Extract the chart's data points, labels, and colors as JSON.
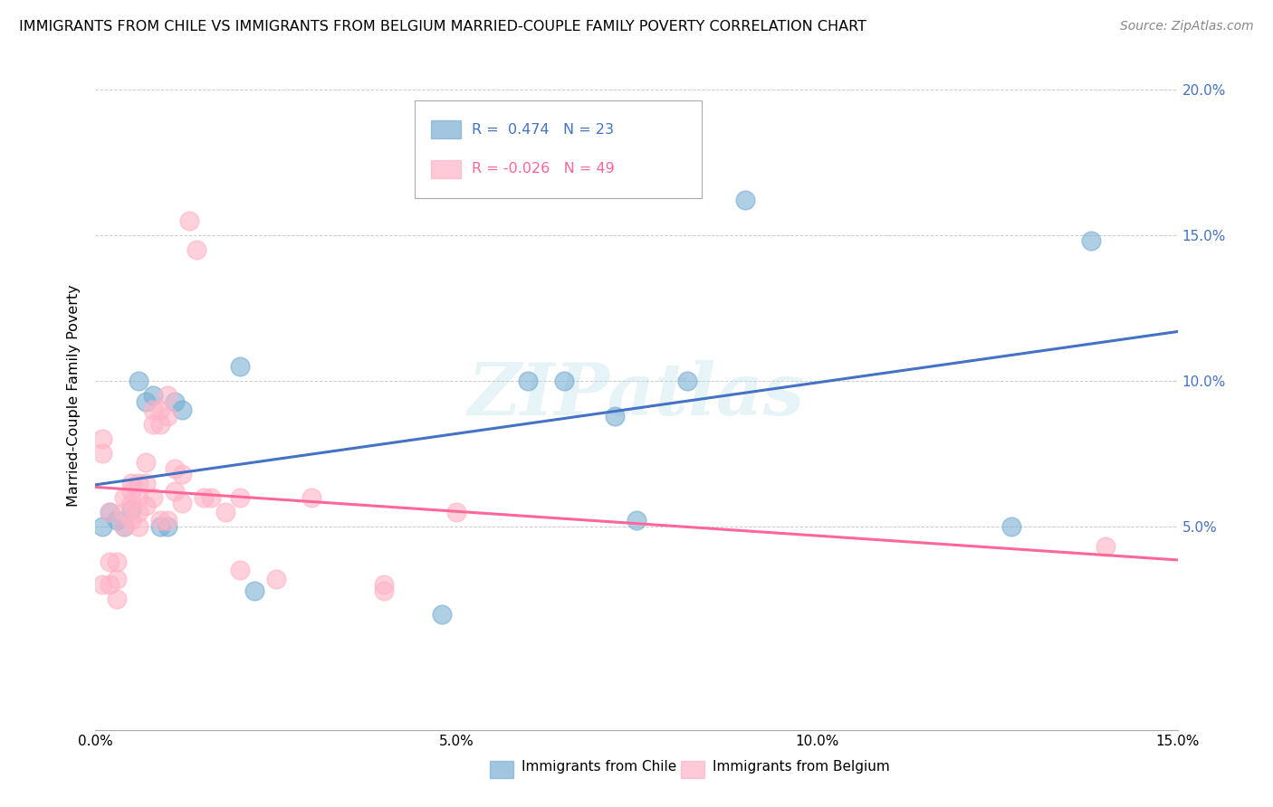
{
  "title": "IMMIGRANTS FROM CHILE VS IMMIGRANTS FROM BELGIUM MARRIED-COUPLE FAMILY POVERTY CORRELATION CHART",
  "source": "Source: ZipAtlas.com",
  "ylabel": "Married-Couple Family Poverty",
  "xlim": [
    0.0,
    0.15
  ],
  "ylim": [
    -0.02,
    0.21
  ],
  "xticks": [
    0.0,
    0.05,
    0.1,
    0.15
  ],
  "xtick_labels": [
    "0.0%",
    "5.0%",
    "10.0%",
    "15.0%"
  ],
  "yticks": [
    0.05,
    0.1,
    0.15,
    0.2
  ],
  "ytick_labels": [
    "5.0%",
    "10.0%",
    "15.0%",
    "20.0%"
  ],
  "chile_color": "#7BAFD4",
  "chile_line_color": "#4472C4",
  "belgium_color": "#FFB3C6",
  "belgium_line_color": "#FF6699",
  "chile_R": 0.474,
  "chile_N": 23,
  "belgium_R": -0.026,
  "belgium_N": 49,
  "watermark": "ZIPatlas",
  "chile_scatter_x": [
    0.001,
    0.002,
    0.003,
    0.004,
    0.005,
    0.006,
    0.007,
    0.008,
    0.009,
    0.01,
    0.011,
    0.012,
    0.02,
    0.022,
    0.048,
    0.06,
    0.065,
    0.072,
    0.075,
    0.082,
    0.09,
    0.127,
    0.138
  ],
  "chile_scatter_y": [
    0.05,
    0.055,
    0.052,
    0.05,
    0.056,
    0.1,
    0.093,
    0.095,
    0.05,
    0.05,
    0.093,
    0.09,
    0.105,
    0.028,
    0.02,
    0.1,
    0.1,
    0.088,
    0.052,
    0.1,
    0.162,
    0.05,
    0.148
  ],
  "belgium_scatter_x": [
    0.001,
    0.001,
    0.001,
    0.002,
    0.002,
    0.002,
    0.003,
    0.003,
    0.003,
    0.004,
    0.004,
    0.004,
    0.005,
    0.005,
    0.005,
    0.005,
    0.006,
    0.006,
    0.006,
    0.006,
    0.007,
    0.007,
    0.007,
    0.008,
    0.008,
    0.008,
    0.009,
    0.009,
    0.009,
    0.01,
    0.01,
    0.01,
    0.011,
    0.011,
    0.012,
    0.012,
    0.013,
    0.014,
    0.015,
    0.016,
    0.018,
    0.02,
    0.02,
    0.025,
    0.03,
    0.04,
    0.04,
    0.05,
    0.14
  ],
  "belgium_scatter_y": [
    0.08,
    0.075,
    0.03,
    0.055,
    0.038,
    0.03,
    0.038,
    0.032,
    0.025,
    0.06,
    0.055,
    0.05,
    0.065,
    0.062,
    0.058,
    0.052,
    0.065,
    0.06,
    0.055,
    0.05,
    0.072,
    0.065,
    0.057,
    0.09,
    0.085,
    0.06,
    0.09,
    0.085,
    0.052,
    0.095,
    0.088,
    0.052,
    0.07,
    0.062,
    0.068,
    0.058,
    0.155,
    0.145,
    0.06,
    0.06,
    0.055,
    0.06,
    0.035,
    0.032,
    0.06,
    0.03,
    0.028,
    0.055,
    0.043
  ],
  "legend_chile_text": "R =  0.474   N = 23",
  "legend_belgium_text": "R = -0.026   N = 49",
  "bottom_legend_chile": "Immigrants from Chile",
  "bottom_legend_belgium": "Immigrants from Belgium"
}
